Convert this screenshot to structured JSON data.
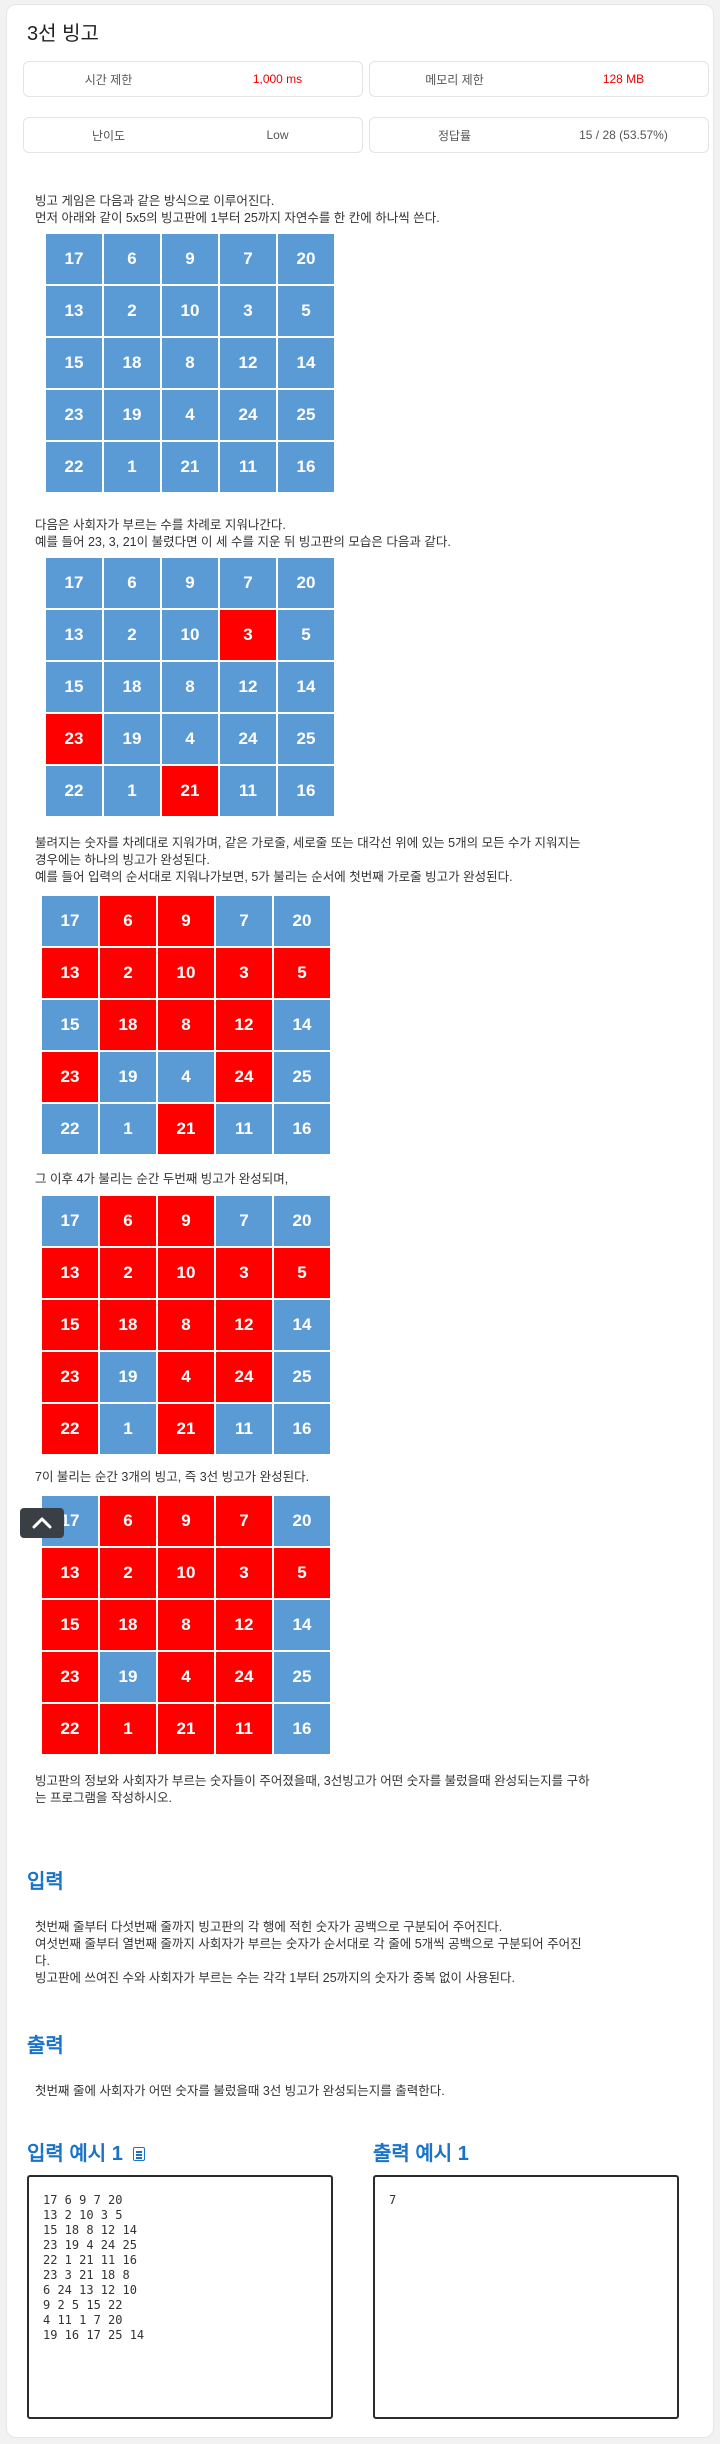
{
  "title": "3선 빙고",
  "info": {
    "time_label": "시간 제한",
    "time_value": "1,000 ms",
    "mem_label": "메모리 제한",
    "mem_value": "128 MB",
    "diff_label": "난이도",
    "diff_value": "Low",
    "rate_label": "정답률",
    "rate_value": "15 / 28 (53.57%)"
  },
  "desc": {
    "p1_l1": "빙고 게임은 다음과 같은 방식으로 이루어진다.",
    "p1_l2": "먼저 아래와 같이 5x5의 빙고판에 1부터 25까지 자연수를 한 칸에 하나씩 쓴다.",
    "p2_l1": "다음은 사회자가 부르는 수를 차례로 지워나간다.",
    "p2_l2": "예를 들어 23, 3, 21이 불렸다면 이 세 수를 지운 뒤 빙고판의 모습은 다음과 같다.",
    "p3_l1": "불려지는 숫자를 차례대로 지워가며, 같은 가로줄, 세로줄 또는 대각선 위에 있는 5개의 모든 수가 지워지는",
    "p3_l2": "경우에는 하나의 빙고가 완성된다.",
    "p3_l3": "예를 들어 입력의 순서대로 지워나가보면, 5가 불리는 순서에 첫번째 가로줄 빙고가 완성된다.",
    "p4": "그 이후 4가 불리는 순간 두번째 빙고가 완성되며,",
    "p5": "7이 불리는 순간 3개의 빙고, 즉 3선 빙고가 완성된다.",
    "p6_l1": "빙고판의 정보와 사회자가 부르는 숫자들이 주어졌을때, 3선빙고가 어떤 숫자를 불렀을때 완성되는지를 구하",
    "p6_l2": "는 프로그램을 작성하시오."
  },
  "boards": [
    {
      "cells": [
        17,
        6,
        9,
        7,
        20,
        13,
        2,
        10,
        3,
        5,
        15,
        18,
        8,
        12,
        14,
        23,
        19,
        4,
        24,
        25,
        22,
        1,
        21,
        11,
        16
      ],
      "marked": []
    },
    {
      "cells": [
        17,
        6,
        9,
        7,
        20,
        13,
        2,
        10,
        3,
        5,
        15,
        18,
        8,
        12,
        14,
        23,
        19,
        4,
        24,
        25,
        22,
        1,
        21,
        11,
        16
      ],
      "marked": [
        3,
        23,
        21
      ]
    },
    {
      "cells": [
        17,
        6,
        9,
        7,
        20,
        13,
        2,
        10,
        3,
        5,
        15,
        18,
        8,
        12,
        14,
        23,
        19,
        4,
        24,
        25,
        22,
        1,
        21,
        11,
        16
      ],
      "marked": [
        6,
        9,
        13,
        2,
        10,
        3,
        5,
        18,
        8,
        12,
        23,
        24,
        21
      ]
    },
    {
      "cells": [
        17,
        6,
        9,
        7,
        20,
        13,
        2,
        10,
        3,
        5,
        15,
        18,
        8,
        12,
        14,
        23,
        19,
        4,
        24,
        25,
        22,
        1,
        21,
        11,
        16
      ],
      "marked": [
        6,
        9,
        13,
        2,
        10,
        3,
        5,
        15,
        18,
        8,
        12,
        23,
        4,
        24,
        22,
        21
      ]
    },
    {
      "cells": [
        17,
        6,
        9,
        7,
        20,
        13,
        2,
        10,
        3,
        5,
        15,
        18,
        8,
        12,
        14,
        23,
        19,
        4,
        24,
        25,
        22,
        1,
        21,
        11,
        16
      ],
      "marked": [
        6,
        9,
        7,
        13,
        2,
        10,
        3,
        5,
        15,
        18,
        8,
        12,
        23,
        4,
        24,
        22,
        1,
        21,
        11
      ]
    }
  ],
  "colors": {
    "blue": "#5b9bd5",
    "red": "#ff0000",
    "heading": "#1a73c8"
  },
  "input_section": {
    "heading": "입력",
    "l1": "첫번째 줄부터 다섯번째 줄까지 빙고판의 각 행에 적힌 숫자가 공백으로 구분되어 주어진다.",
    "l2": "여섯번째 줄부터 열번째 줄까지 사회자가 부르는 숫자가 순서대로 각 줄에 5개씩 공백으로 구분되어 주어진",
    "l3": "다.",
    "l4": "빙고판에 쓰여진 수와 사회자가 부르는 수는 각각 1부터 25까지의 숫자가 중복 없이 사용된다."
  },
  "output_section": {
    "heading": "출력",
    "l1": "첫번째 줄에 사회자가 어떤 숫자를 불렀을때 3선 빙고가 완성되는지를 출력한다."
  },
  "sample_input": {
    "heading": "입력 예시 1",
    "icon": "clipboard-icon",
    "text": "17 6 9 7 20\n13 2 10 3 5\n15 18 8 12 14\n23 19 4 24 25\n22 1 21 11 16\n23 3 21 18 8\n6 24 13 12 10\n9 2 5 15 22\n4 11 1 7 20\n19 16 17 25 14"
  },
  "sample_output": {
    "heading": "출력 예시 1",
    "text": "7"
  },
  "scroll_top": {
    "icon": "chevron-up-icon"
  }
}
